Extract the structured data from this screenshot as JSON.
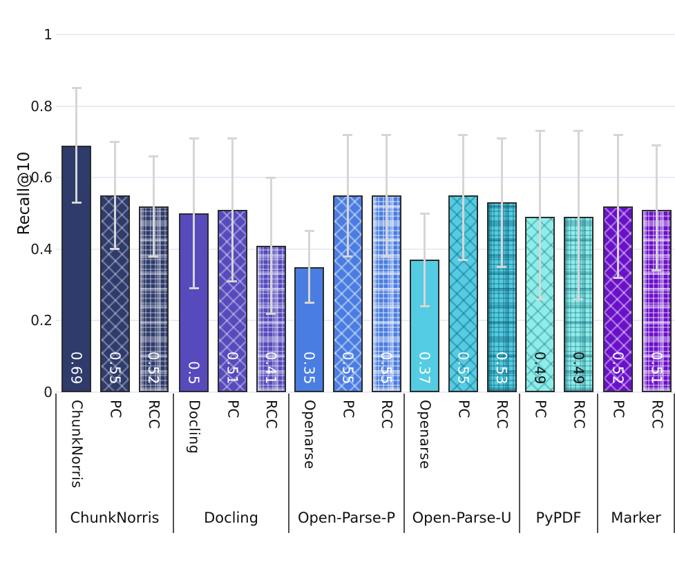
{
  "chart_data": {
    "type": "bar",
    "title": "",
    "xlabel": "",
    "ylabel": "Recall@10",
    "ylim": [
      0,
      1
    ],
    "yticks": [
      "0",
      "0.2",
      "0.4",
      "0.6",
      "0.8",
      "1"
    ],
    "grid": true,
    "legend": false,
    "error_bars": true,
    "value_labels_position": "inside-base-rotated",
    "colors": {
      "gridline": "#e7ecf6",
      "error_bar": "#d6d6d6",
      "bar_border": "#2b2b2b",
      "axis_text": "#111111",
      "group_divider": "#4f4f4f"
    },
    "groups": [
      {
        "label": "ChunkNorris",
        "color": "#2e3b6b",
        "pattern_line": "rgba(255,255,255,0.30)",
        "value_text_color": "#ffffff",
        "bars": [
          {
            "tick": "ChunkNorris",
            "value": 0.69,
            "label": "0.69",
            "err": [
              0.53,
              0.85
            ],
            "pattern": "solid"
          },
          {
            "tick": "PC",
            "value": 0.55,
            "label": "0.55",
            "err": [
              0.4,
              0.7
            ],
            "pattern": "cross"
          },
          {
            "tick": "RCC",
            "value": 0.52,
            "label": "0.52",
            "err": [
              0.38,
              0.66
            ],
            "pattern": "plaid"
          }
        ]
      },
      {
        "label": "Docling",
        "color": "#564abd",
        "pattern_line": "rgba(255,255,255,0.33)",
        "value_text_color": "#ffffff",
        "bars": [
          {
            "tick": "Docling",
            "value": 0.5,
            "label": "0.5",
            "err": [
              0.29,
              0.71
            ],
            "pattern": "solid"
          },
          {
            "tick": "PC",
            "value": 0.51,
            "label": "0.51",
            "err": [
              0.31,
              0.71
            ],
            "pattern": "cross"
          },
          {
            "tick": "RCC",
            "value": 0.41,
            "label": "0.41",
            "err": [
              0.22,
              0.6
            ],
            "pattern": "plaid"
          }
        ]
      },
      {
        "label": "Open-Parse-P",
        "color": "#4a7de2",
        "pattern_line": "rgba(255,255,255,0.40)",
        "value_text_color": "#ffffff",
        "bars": [
          {
            "tick": "Openarse",
            "value": 0.35,
            "label": "0.35",
            "err": [
              0.25,
              0.45
            ],
            "pattern": "solid"
          },
          {
            "tick": "PC",
            "value": 0.55,
            "label": "0.55",
            "err": [
              0.38,
              0.72
            ],
            "pattern": "cross"
          },
          {
            "tick": "RCC",
            "value": 0.55,
            "label": "0.55",
            "err": [
              0.38,
              0.72
            ],
            "pattern": "plaid"
          }
        ]
      },
      {
        "label": "Open-Parse-U",
        "color": "#54cce3",
        "pattern_line": "rgba(10,90,110,0.35)",
        "value_text_color": "#ffffff",
        "bars": [
          {
            "tick": "Openarse",
            "value": 0.37,
            "label": "0.37",
            "err": [
              0.24,
              0.5
            ],
            "pattern": "solid"
          },
          {
            "tick": "PC",
            "value": 0.55,
            "label": "0.55",
            "err": [
              0.37,
              0.72
            ],
            "pattern": "cross"
          },
          {
            "tick": "RCC",
            "value": 0.53,
            "label": "0.53",
            "err": [
              0.35,
              0.71
            ],
            "pattern": "plaid"
          }
        ]
      },
      {
        "label": "PyPDF",
        "color": "#8deee9",
        "pattern_line": "rgba(10,90,110,0.28)",
        "value_text_color": "#111111",
        "bars": [
          {
            "tick": "PC",
            "value": 0.49,
            "label": "0.49",
            "err": [
              0.26,
              0.73
            ],
            "pattern": "cross"
          },
          {
            "tick": "RCC",
            "value": 0.49,
            "label": "0.49",
            "err": [
              0.26,
              0.73
            ],
            "pattern": "plaid"
          }
        ]
      },
      {
        "label": "Marker",
        "color": "#6b10c9",
        "pattern_line": "rgba(255,255,255,0.38)",
        "value_text_color": "#ffffff",
        "bars": [
          {
            "tick": "PC",
            "value": 0.52,
            "label": "0.52",
            "err": [
              0.32,
              0.72
            ],
            "pattern": "cross"
          },
          {
            "tick": "RCC",
            "value": 0.51,
            "label": "0.51",
            "err": [
              0.34,
              0.69
            ],
            "pattern": "plaid"
          }
        ]
      }
    ]
  }
}
